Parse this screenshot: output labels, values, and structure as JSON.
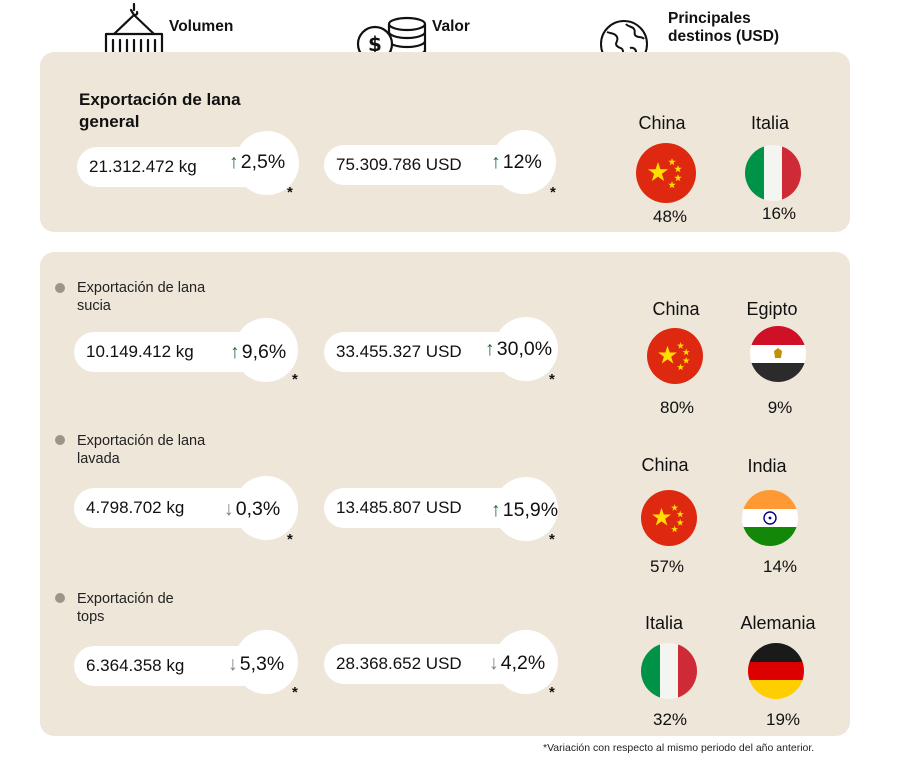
{
  "header": {
    "volume_label": "Volumen",
    "value_label": "Valor",
    "destinations_label_line1": "Principales",
    "destinations_label_line2": "destinos (USD)",
    "volume_icon": "container-crane-icon",
    "value_icon": "coins-dollar-icon",
    "destinations_icon": "globe-icon"
  },
  "colors": {
    "panel_bg": "#ede6d9",
    "up_arrow": "#1f6b2e",
    "down_arrow": "#7f7f7f",
    "bullet": "#9b958c"
  },
  "general": {
    "title_line1": "Exportación de lana",
    "title_line2": "general",
    "volume": "21.312.472 kg",
    "volume_change": "2,5%",
    "volume_trend": "up",
    "value": "75.309.786 USD",
    "value_change": "12%",
    "value_trend": "up",
    "asterisk": "*",
    "destinations": [
      {
        "country": "China",
        "share": "48%",
        "flag": "china"
      },
      {
        "country": "Italia",
        "share": "16%",
        "flag": "italy"
      }
    ]
  },
  "sections": [
    {
      "title_line1": "Exportación de lana",
      "title_line2": "sucia",
      "volume": "10.149.412 kg",
      "volume_change": "9,6%",
      "volume_trend": "up",
      "value": "33.455.327 USD",
      "value_change": "30,0%",
      "value_trend": "up",
      "asterisk": "*",
      "destinations": [
        {
          "country": "China",
          "share": "80%",
          "flag": "china"
        },
        {
          "country": "Egipto",
          "share": "9%",
          "flag": "egypt"
        }
      ]
    },
    {
      "title_line1": "Exportación de lana",
      "title_line2": "lavada",
      "volume": "4.798.702 kg",
      "volume_change": "0,3%",
      "volume_trend": "down",
      "value": "13.485.807 USD",
      "value_change": "15,9%",
      "value_trend": "up",
      "asterisk": "*",
      "destinations": [
        {
          "country": "China",
          "share": "57%",
          "flag": "china"
        },
        {
          "country": "India",
          "share": "14%",
          "flag": "india"
        }
      ]
    },
    {
      "title_line1": "Exportación de",
      "title_line2": "tops",
      "volume": "6.364.358 kg",
      "volume_change": "5,3%",
      "volume_trend": "down",
      "value": "28.368.652 USD",
      "value_change": "4,2%",
      "value_trend": "down",
      "asterisk": "*",
      "destinations": [
        {
          "country": "Italia",
          "share": "32%",
          "flag": "italy"
        },
        {
          "country": "Alemania",
          "share": "19%",
          "flag": "germany"
        }
      ]
    }
  ],
  "footnote": "*Variación con respecto al mismo periodo del año anterior."
}
